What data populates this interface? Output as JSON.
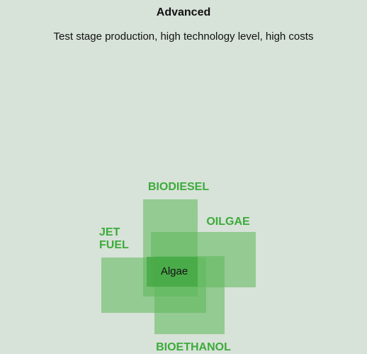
{
  "header": {
    "title": "Advanced",
    "subtitle": "Test stage production, high technology level, high costs"
  },
  "nodes": [
    {
      "label": [
        "BIODIESEL"
      ]
    },
    {
      "label": [
        "OILGAE"
      ]
    },
    {
      "label": [
        "JET",
        "FUEL"
      ]
    },
    {
      "label": [
        "BIOETHANOL"
      ]
    },
    {
      "label": [
        "Algae"
      ]
    }
  ]
}
